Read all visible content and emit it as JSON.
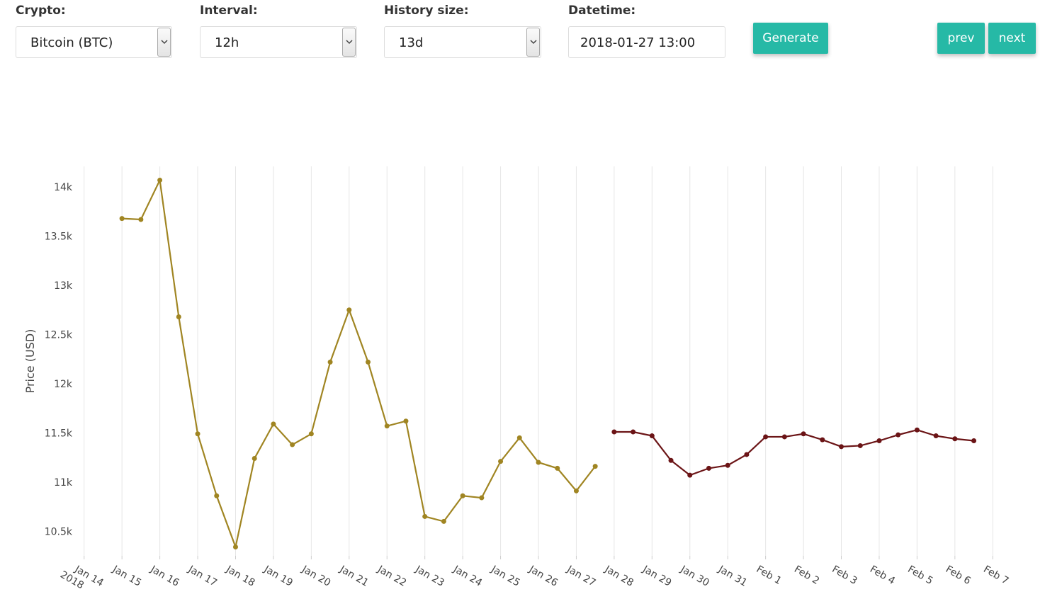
{
  "form": {
    "crypto": {
      "label": "Crypto:",
      "value": "Bitcoin (BTC)"
    },
    "interval": {
      "label": "Interval:",
      "value": "12h"
    },
    "history_size": {
      "label": "History size:",
      "value": "13d"
    },
    "datetime": {
      "label": "Datetime:",
      "value": "2018-01-27 13:00"
    }
  },
  "buttons": {
    "generate": "Generate",
    "prev": "prev",
    "next": "next"
  },
  "chart_data": {
    "type": "line",
    "y_label": "Price (USD)",
    "grid": "x",
    "x": [
      "2018-01-15T00:00",
      "2018-01-15T12:00",
      "2018-01-16T00:00",
      "2018-01-16T12:00",
      "2018-01-17T00:00",
      "2018-01-17T12:00",
      "2018-01-18T00:00",
      "2018-01-18T12:00",
      "2018-01-19T00:00",
      "2018-01-19T12:00",
      "2018-01-20T00:00",
      "2018-01-20T12:00",
      "2018-01-21T00:00",
      "2018-01-21T12:00",
      "2018-01-22T00:00",
      "2018-01-22T12:00",
      "2018-01-23T00:00",
      "2018-01-23T12:00",
      "2018-01-24T00:00",
      "2018-01-24T12:00",
      "2018-01-25T00:00",
      "2018-01-25T12:00",
      "2018-01-26T00:00",
      "2018-01-26T12:00",
      "2018-01-27T00:00",
      "2018-01-27T12:00",
      "2018-01-28T00:00",
      "2018-01-28T12:00",
      "2018-01-29T00:00",
      "2018-01-29T12:00",
      "2018-01-30T00:00",
      "2018-01-30T12:00",
      "2018-01-31T00:00",
      "2018-01-31T12:00",
      "2018-02-01T00:00",
      "2018-02-01T12:00",
      "2018-02-02T00:00",
      "2018-02-02T12:00",
      "2018-02-03T00:00",
      "2018-02-03T12:00",
      "2018-02-04T00:00",
      "2018-02-04T12:00",
      "2018-02-05T00:00",
      "2018-02-05T12:00",
      "2018-02-06T00:00",
      "2018-02-06T12:00"
    ],
    "series": [
      {
        "color": "#a08522",
        "values": [
          13680,
          13670,
          14070,
          12680,
          11490,
          10860,
          10340,
          11240,
          11590,
          11380,
          11490,
          12220,
          12750,
          12220,
          11570,
          11620,
          10650,
          10600,
          10860,
          10840,
          11210,
          11450,
          11200,
          11140,
          10910,
          11160,
          null,
          null,
          null,
          null,
          null,
          null,
          null,
          null,
          null,
          null,
          null,
          null,
          null,
          null,
          null,
          null,
          null,
          null,
          null,
          null
        ]
      },
      {
        "color": "#6b1416",
        "values": [
          null,
          null,
          null,
          null,
          null,
          null,
          null,
          null,
          null,
          null,
          null,
          null,
          null,
          null,
          null,
          null,
          null,
          null,
          null,
          null,
          null,
          null,
          null,
          null,
          null,
          null,
          11510,
          11510,
          11470,
          11220,
          11070,
          11140,
          11170,
          11280,
          11460,
          11460,
          11490,
          11430,
          11360,
          11370,
          11420,
          11480,
          11530,
          11470,
          11440,
          11420
        ]
      }
    ],
    "xlim": [
      "2018-01-13T12:00",
      "2018-02-07T12:00"
    ],
    "xticks": [
      {
        "value": "2018-01-14T00:00",
        "label": [
          "Jan 14",
          "2018"
        ]
      },
      {
        "value": "2018-01-15T00:00",
        "label": [
          "Jan 15"
        ]
      },
      {
        "value": "2018-01-16T00:00",
        "label": [
          "Jan 16"
        ]
      },
      {
        "value": "2018-01-17T00:00",
        "label": [
          "Jan 17"
        ]
      },
      {
        "value": "2018-01-18T00:00",
        "label": [
          "Jan 18"
        ]
      },
      {
        "value": "2018-01-19T00:00",
        "label": [
          "Jan 19"
        ]
      },
      {
        "value": "2018-01-20T00:00",
        "label": [
          "Jan 20"
        ]
      },
      {
        "value": "2018-01-21T00:00",
        "label": [
          "Jan 21"
        ]
      },
      {
        "value": "2018-01-22T00:00",
        "label": [
          "Jan 22"
        ]
      },
      {
        "value": "2018-01-23T00:00",
        "label": [
          "Jan 23"
        ]
      },
      {
        "value": "2018-01-24T00:00",
        "label": [
          "Jan 24"
        ]
      },
      {
        "value": "2018-01-25T00:00",
        "label": [
          "Jan 25"
        ]
      },
      {
        "value": "2018-01-26T00:00",
        "label": [
          "Jan 26"
        ]
      },
      {
        "value": "2018-01-27T00:00",
        "label": [
          "Jan 27"
        ]
      },
      {
        "value": "2018-01-28T00:00",
        "label": [
          "Jan 28"
        ]
      },
      {
        "value": "2018-01-29T00:00",
        "label": [
          "Jan 29"
        ]
      },
      {
        "value": "2018-01-30T00:00",
        "label": [
          "Jan 30"
        ]
      },
      {
        "value": "2018-01-31T00:00",
        "label": [
          "Jan 31"
        ]
      },
      {
        "value": "2018-02-01T00:00",
        "label": [
          "Feb 1"
        ]
      },
      {
        "value": "2018-02-02T00:00",
        "label": [
          "Feb 2"
        ]
      },
      {
        "value": "2018-02-03T00:00",
        "label": [
          "Feb 3"
        ]
      },
      {
        "value": "2018-02-04T00:00",
        "label": [
          "Feb 4"
        ]
      },
      {
        "value": "2018-02-05T00:00",
        "label": [
          "Feb 5"
        ]
      },
      {
        "value": "2018-02-06T00:00",
        "label": [
          "Feb 6"
        ]
      },
      {
        "value": "2018-02-07T00:00",
        "label": [
          "Feb 7"
        ]
      }
    ],
    "ylim": [
      10250,
      14210
    ],
    "yticks": [
      {
        "value": 10500,
        "label": "10.5k"
      },
      {
        "value": 11000,
        "label": "11k"
      },
      {
        "value": 11500,
        "label": "11.5k"
      },
      {
        "value": 12000,
        "label": "12k"
      },
      {
        "value": 12500,
        "label": "12.5k"
      },
      {
        "value": 13000,
        "label": "13k"
      },
      {
        "value": 13500,
        "label": "13.5k"
      },
      {
        "value": 14000,
        "label": "14k"
      }
    ]
  }
}
